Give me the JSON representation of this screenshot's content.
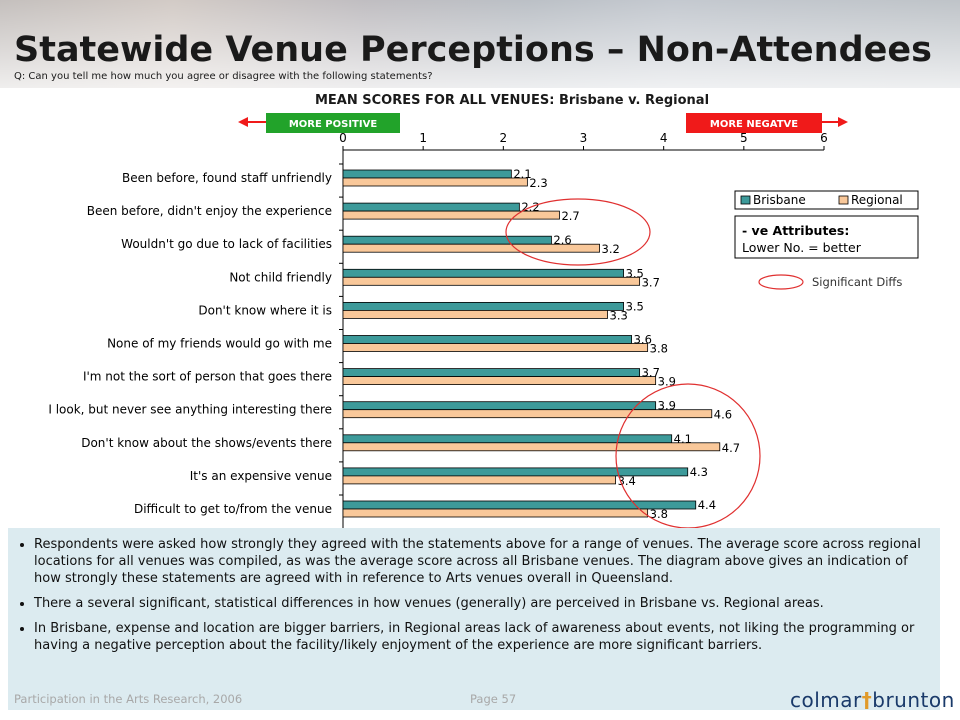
{
  "header": {
    "title": "Statewide Venue Perceptions – Non-Attendees",
    "question": "Q: Can you tell me how much you agree or disagree with the following statements?"
  },
  "colors": {
    "brisbane": "#3d9a9a",
    "regional": "#f9c89a",
    "positive_box": "#22a32a",
    "negative_box": "#f01a1a",
    "circle": "#e03030",
    "notes_bg": "#dcebf0"
  },
  "chart_data": {
    "type": "bar",
    "orientation": "horizontal",
    "title": "MEAN SCORES FOR ALL VENUES: Brisbane v. Regional",
    "direction_labels": {
      "positive": "MORE POSITIVE",
      "negative": "MORE NEGATVE"
    },
    "xlim": [
      0,
      6
    ],
    "x_ticks": [
      0,
      1,
      2,
      3,
      4,
      5,
      6
    ],
    "categories": [
      "Been before, found staff unfriendly",
      "Been before, didn't enjoy the experience",
      "Wouldn't go due to lack of facilities",
      "Not child friendly",
      "Don't know where it is",
      "None of my friends would go with me",
      "I'm not the sort of person that goes there",
      "I look, but never see anything interesting there",
      "Don't know about the shows/events there",
      "It's an expensive venue",
      "Difficult to get to/from the venue"
    ],
    "series": [
      {
        "name": "Brisbane",
        "values": [
          2.1,
          2.2,
          2.6,
          3.5,
          3.5,
          3.6,
          3.7,
          3.9,
          4.1,
          4.3,
          4.4
        ]
      },
      {
        "name": "Regional",
        "values": [
          2.3,
          2.7,
          3.2,
          3.7,
          3.3,
          3.8,
          3.9,
          4.6,
          4.7,
          3.4,
          3.8
        ]
      }
    ],
    "legend_position": "right",
    "attribute_note_line1": "- ve Attributes:",
    "attribute_note_line2": "Lower No. = better",
    "significant_label": "Significant Diffs"
  },
  "notes": [
    "Respondents were asked how strongly they agreed with the statements above for a range of venues.  The average score across regional locations for all venues was compiled, as was the average score across all Brisbane venues.  The diagram above gives an indication of how strongly these statements are agreed with in reference to Arts venues overall in Queensland.",
    "There a several significant, statistical differences in how venues (generally) are perceived in Brisbane vs. Regional areas.",
    "In Brisbane, expense and location are bigger barriers, in Regional areas lack of awareness about events, not liking the programming or having a negative perception about the facility/likely enjoyment of the experience are more significant barriers."
  ],
  "footer": {
    "left": "Participation in the Arts Research, 2006",
    "page": "Page 57",
    "logo_part1": "colmar",
    "logo_x": "†",
    "logo_part2": "brunton"
  }
}
